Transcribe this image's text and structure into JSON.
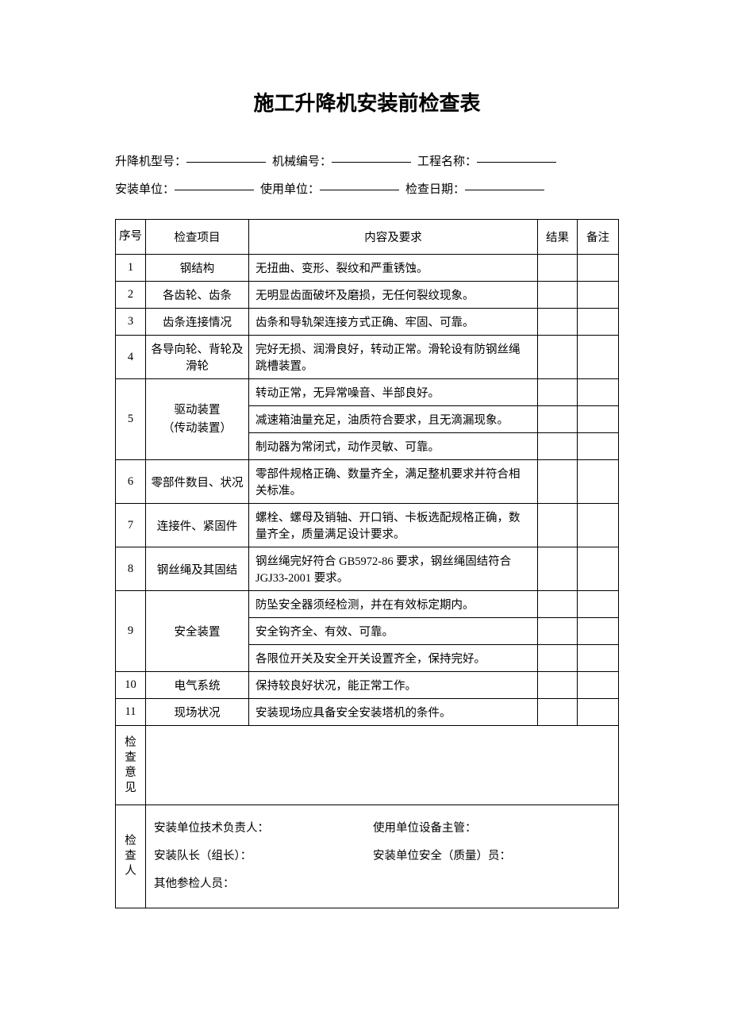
{
  "title": "施工升降机安装前检查表",
  "header": {
    "row1": {
      "f1_label": "升降机型号：",
      "f2_label": "机械编号：",
      "f3_label": "工程名称："
    },
    "row2": {
      "f1_label": "安装单位：",
      "f2_label": "使用单位：",
      "f3_label": "检查日期："
    }
  },
  "columns": {
    "seq": "序号",
    "item": "检查项目",
    "content": "内容及要求",
    "result": "结果",
    "note": "备注"
  },
  "rows": [
    {
      "seq": "1",
      "item": "钢结构",
      "contents": [
        "无扭曲、变形、裂纹和严重锈蚀。"
      ]
    },
    {
      "seq": "2",
      "item": "各齿轮、齿条",
      "contents": [
        "无明显齿面破坏及磨损，无任何裂纹现象。"
      ]
    },
    {
      "seq": "3",
      "item": "齿条连接情况",
      "contents": [
        "齿条和导轨架连接方式正确、牢固、可靠。"
      ]
    },
    {
      "seq": "4",
      "item": "各导向轮、背轮及滑轮",
      "contents": [
        "完好无损、润滑良好，转动正常。滑轮设有防钢丝绳跳槽装置。"
      ]
    },
    {
      "seq": "5",
      "item": "驱动装置\n（传动装置）",
      "contents": [
        "转动正常，无异常噪音、半部良好。",
        "减速箱油量充足，油质符合要求，且无滴漏现象。",
        "制动器为常闭式，动作灵敏、可靠。"
      ]
    },
    {
      "seq": "6",
      "item": "零部件数目、状况",
      "contents": [
        "零部件规格正确、数量齐全，满足整机要求并符合相关标准。"
      ]
    },
    {
      "seq": "7",
      "item": "连接件、紧固件",
      "contents": [
        "螺栓、螺母及销轴、开口销、卡板选配规格正确，数量齐全，质量满足设计要求。"
      ]
    },
    {
      "seq": "8",
      "item": "钢丝绳及其固结",
      "contents": [
        "钢丝绳完好符合 GB5972-86 要求，钢丝绳固结符合 JGJ33-2001 要求。"
      ]
    },
    {
      "seq": "9",
      "item": "安全装置",
      "contents": [
        "防坠安全器须经检测，并在有效标定期内。",
        "安全钩齐全、有效、可靠。",
        "各限位开关及安全开关设置齐全，保持完好。"
      ]
    },
    {
      "seq": "10",
      "item": "电气系统",
      "contents": [
        "保持较良好状况，能正常工作。"
      ]
    },
    {
      "seq": "11",
      "item": "现场状况",
      "contents": [
        "安装现场应具备安全安装塔机的条件。"
      ]
    }
  ],
  "opinion_label": "检查意见",
  "inspectors_label": "检查人",
  "inspectors": {
    "tech_lead": "安装单位技术负责人：",
    "equip_mgr": "使用单位设备主管：",
    "team_lead": "安装队长（组长）：",
    "safety": "安装单位安全（质量）员：",
    "others": "其他参检人员："
  },
  "style": {
    "page_bg": "#ffffff",
    "border_color": "#000000",
    "title_fontsize": 26,
    "body_fontsize": 14.5,
    "header_fontsize": 15,
    "underline_width": 100
  }
}
